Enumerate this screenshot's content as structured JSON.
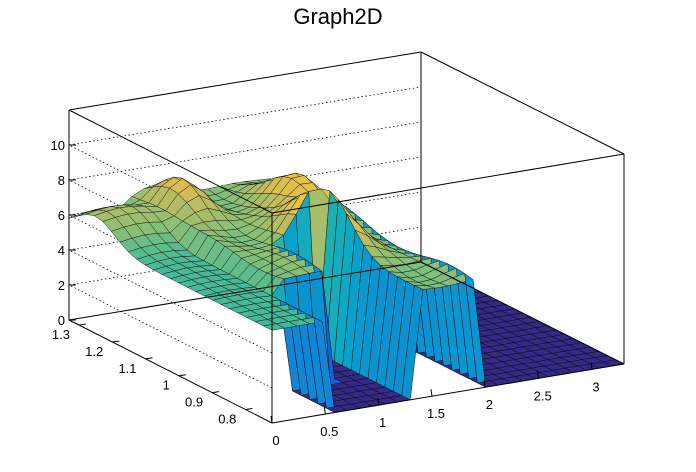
{
  "chart_data": {
    "type": "surface3d",
    "title": "Graph2D",
    "palette": [
      "#352a87",
      "#0f5cdd",
      "#1481d6",
      "#06a4ca",
      "#2eb7a4",
      "#87bf77",
      "#d1bb59",
      "#fec832",
      "#f9fb0e"
    ],
    "mesh_color": "#000000",
    "box": {
      "visible": true,
      "back_grid": "dotted"
    },
    "axes": {
      "x": {
        "range": [
          0,
          3.3
        ],
        "ticks": [
          0,
          0.5,
          1,
          1.5,
          2,
          2.5,
          3
        ],
        "tick_labels": [
          "0",
          "0.5",
          "1",
          "1.5",
          "2",
          "2.5",
          "3"
        ]
      },
      "y": {
        "range": [
          0.72,
          1.33
        ],
        "ticks": [
          0.8,
          0.9,
          1.0,
          1.1,
          1.2,
          1.3
        ],
        "tick_labels": [
          "0.8",
          "0.9",
          "1",
          "1.1",
          "1.2",
          "1.3"
        ]
      },
      "z": {
        "range": [
          0,
          12
        ],
        "ticks": [
          0,
          2,
          4,
          6,
          8,
          10
        ],
        "tick_labels": [
          "0",
          "2",
          "4",
          "6",
          "8",
          "10"
        ]
      }
    },
    "surface": {
      "x_cells": 28,
      "y_cells": 24,
      "features": {
        "plateau_level": 6.2,
        "floor_level": 0,
        "left_cliff_x": 0.55,
        "gap_x_range": [
          1.0,
          1.35
        ],
        "right_cliff_x": 1.95,
        "peaks": [
          {
            "x": 0.8,
            "y": 1.25,
            "z": 7.8
          },
          {
            "x": 1.35,
            "y": 1.0,
            "z": 9.3
          },
          {
            "x": 1.6,
            "y": 1.15,
            "z": 8.5
          }
        ]
      }
    }
  }
}
